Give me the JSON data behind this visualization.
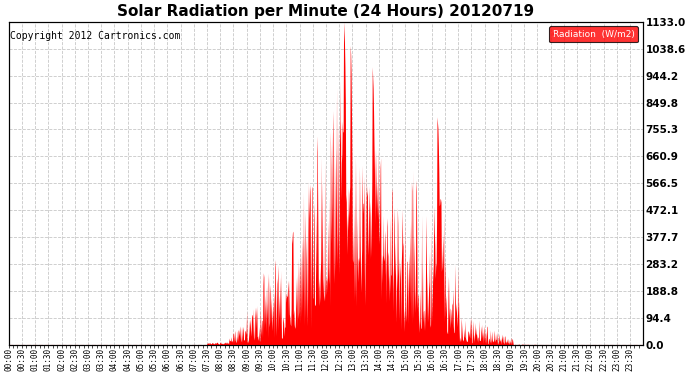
{
  "title": "Solar Radiation per Minute (24 Hours) 20120719",
  "copyright_text": "Copyright 2012 Cartronics.com",
  "legend_label": "Radiation  (W/m2)",
  "yticks": [
    0.0,
    94.4,
    188.8,
    283.2,
    377.7,
    472.1,
    566.5,
    660.9,
    755.3,
    849.8,
    944.2,
    1038.6,
    1133.0
  ],
  "ymax": 1133.0,
  "ymin": 0.0,
  "fill_color": "#ff0000",
  "line_color": "#ff0000",
  "background_color": "#ffffff",
  "grid_color": "#c8c8c8",
  "legend_bg": "#ff0000",
  "legend_text_color": "#ffffff",
  "title_fontsize": 11,
  "copyright_fontsize": 7,
  "ytick_fontsize": 7.5,
  "xtick_fontsize": 5.5
}
